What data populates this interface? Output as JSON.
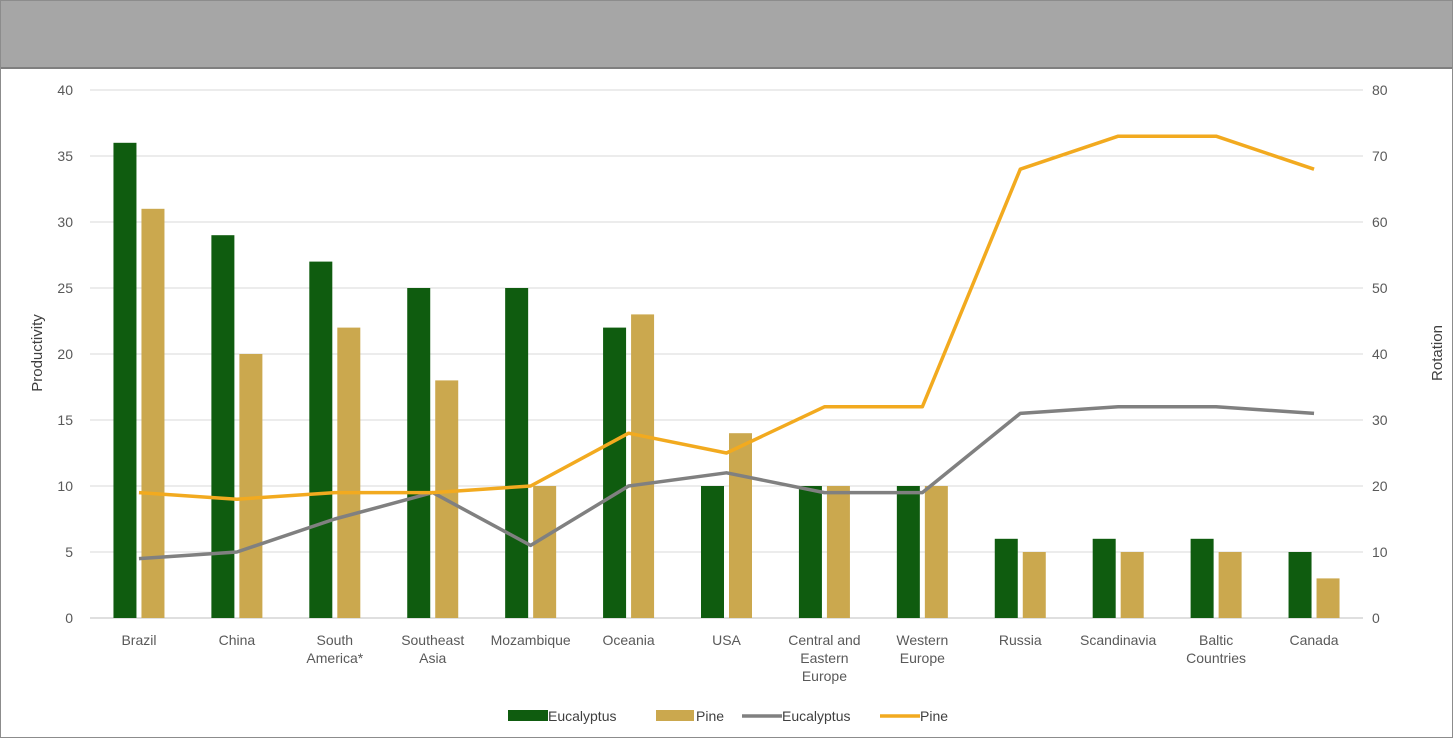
{
  "chart_data": {
    "type": "bar",
    "title": "",
    "categories": [
      [
        "Brazil"
      ],
      [
        "China"
      ],
      [
        "South",
        "America*"
      ],
      [
        "Southeast",
        "Asia"
      ],
      [
        "Mozambique"
      ],
      [
        "Oceania"
      ],
      [
        "USA"
      ],
      [
        "Central and",
        "Eastern",
        "Europe"
      ],
      [
        "Western",
        "Europe"
      ],
      [
        "Russia"
      ],
      [
        "Scandinavia"
      ],
      [
        "Baltic",
        "Countries"
      ],
      [
        "Canada"
      ]
    ],
    "ylabel": "Productivity",
    "y2label": "Rotation",
    "ylim": [
      0,
      40
    ],
    "y2lim": [
      0,
      80
    ],
    "yticks": [
      "0",
      "5",
      "10",
      "15",
      "20",
      "25",
      "30",
      "35",
      "40"
    ],
    "y2ticks": [
      "0",
      "10",
      "20",
      "30",
      "40",
      "50",
      "60",
      "70",
      "80"
    ],
    "grid": true,
    "legend_position": "bottom",
    "bar_series": [
      {
        "name": "Eucalyptus",
        "color": "#0f5c0f",
        "axis": "left",
        "values": [
          36,
          29,
          27,
          25,
          25,
          22,
          10,
          10,
          10,
          6,
          6,
          6,
          5
        ]
      },
      {
        "name": "Pine",
        "color": "#cba84e",
        "axis": "left",
        "values": [
          31,
          20,
          22,
          18,
          10,
          23,
          14,
          10,
          10,
          5,
          5,
          5,
          3
        ]
      }
    ],
    "line_series": [
      {
        "name": "Eucalyptus",
        "color": "#808080",
        "axis": "right",
        "values": [
          9,
          10,
          15,
          19,
          11,
          20,
          22,
          19,
          19,
          31,
          32,
          32,
          31
        ]
      },
      {
        "name": "Pine",
        "color": "#f2aa1f",
        "axis": "right",
        "values": [
          19,
          18,
          19,
          19,
          20,
          28,
          25,
          32,
          32,
          68,
          73,
          73,
          68
        ]
      }
    ]
  }
}
